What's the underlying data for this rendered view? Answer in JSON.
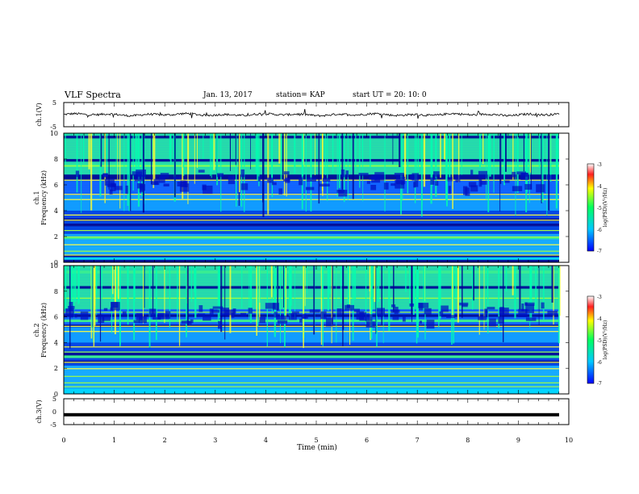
{
  "header": {
    "title": "VLF Spectra",
    "date": "Jan. 13, 2017",
    "station": "station= KAP",
    "start": "start  UT =   20: 10: 0"
  },
  "chart_data": [
    {
      "type": "line",
      "name": "ch.1 waveform",
      "ylabel": "ch.1(V)",
      "ylim": [
        -5,
        5
      ],
      "yticks": [
        "5",
        "-5"
      ],
      "xlim": [
        0,
        10
      ]
    },
    {
      "type": "heatmap",
      "ylabel": "ch.1\nFrequency (kHz)",
      "ylabel_line1": "ch.1",
      "ylabel_line2": "Frequency (kHz)",
      "ylim": [
        0,
        10
      ],
      "yticks": [
        "0",
        "2",
        "4",
        "6",
        "8",
        "10"
      ],
      "xlim": [
        0,
        10
      ],
      "colorbar": {
        "label": "log(PSD)(V²/Hz)",
        "range": [
          -7,
          -3
        ],
        "ticks": [
          "-3",
          "-4",
          "-5",
          "-6",
          "-7"
        ]
      }
    },
    {
      "type": "heatmap",
      "ylabel": "ch.2\nFrequency (kHz)",
      "ylabel_line1": "ch.2",
      "ylabel_line2": "Frequency (kHz)",
      "ylim": [
        0,
        10
      ],
      "yticks": [
        "0",
        "2",
        "4",
        "6",
        "8",
        "10"
      ],
      "xlim": [
        0,
        10
      ],
      "colorbar": {
        "label": "log(PSD)(V²/Hz)",
        "range": [
          -7,
          -3
        ],
        "ticks": [
          "-3",
          "-4",
          "-5",
          "-6",
          "-7"
        ]
      }
    },
    {
      "type": "line",
      "name": "ch.3 waveform",
      "ylabel": "ch.3(V)",
      "ylim": [
        -5,
        5
      ],
      "yticks": [
        "5",
        "0",
        "-5"
      ],
      "level": -1.2,
      "xlim": [
        0,
        10
      ]
    }
  ],
  "xaxis": {
    "label": "Time (min)",
    "ticks": [
      "0",
      "1",
      "2",
      "3",
      "4",
      "5",
      "6",
      "7",
      "8",
      "9",
      "10"
    ]
  }
}
